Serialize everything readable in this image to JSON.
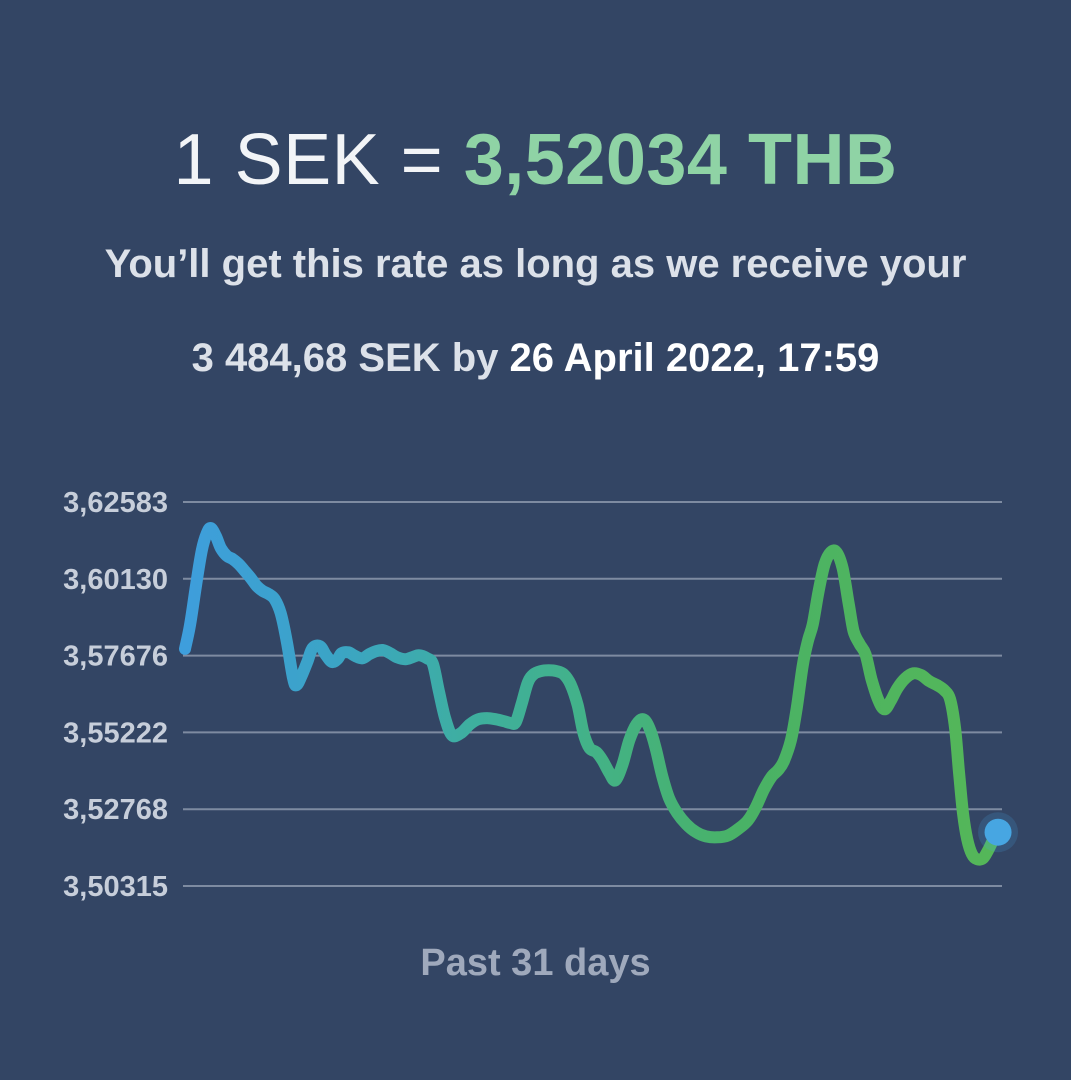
{
  "header": {
    "rate_prefix": "1 SEK = ",
    "rate_value": "3,52034 THB",
    "subtitle_line1": "You’ll get this rate as long as we receive your",
    "subtitle_line2_prefix": "3 484,68 SEK by ",
    "subtitle_line2_deadline": "26 April 2022, 17:59"
  },
  "chart_data": {
    "type": "line",
    "title": "",
    "xlabel": "Past 31 days",
    "ylabel": "",
    "y_ticks": [
      "3,62583",
      "3,60130",
      "3,57676",
      "3,55222",
      "3,52768",
      "3,50315"
    ],
    "ylim": [
      3.50315,
      3.62583
    ],
    "x_window_days": 31,
    "grid": true,
    "legend": "none",
    "series": [
      {
        "name": "SEK to THB exchange rate",
        "points": [
          [
            0,
            3.5789
          ],
          [
            0.19,
            3.5865
          ],
          [
            0.42,
            3.5993
          ],
          [
            0.64,
            3.6105
          ],
          [
            0.83,
            3.6159
          ],
          [
            0.98,
            3.6175
          ],
          [
            1.17,
            3.615
          ],
          [
            1.36,
            3.6111
          ],
          [
            1.59,
            3.6086
          ],
          [
            1.81,
            3.6076
          ],
          [
            2.04,
            3.606
          ],
          [
            2.27,
            3.6038
          ],
          [
            2.5,
            3.6015
          ],
          [
            2.72,
            3.599
          ],
          [
            2.95,
            3.5974
          ],
          [
            3.18,
            3.5964
          ],
          [
            3.4,
            3.5948
          ],
          [
            3.63,
            3.5903
          ],
          [
            3.86,
            3.5814
          ],
          [
            4.1,
            3.5695
          ],
          [
            4.23,
            3.5673
          ],
          [
            4.42,
            3.5702
          ],
          [
            4.65,
            3.575
          ],
          [
            4.84,
            3.5792
          ],
          [
            5.12,
            3.5798
          ],
          [
            5.35,
            3.5769
          ],
          [
            5.58,
            3.5747
          ],
          [
            5.8,
            3.5758
          ],
          [
            5.94,
            3.5775
          ],
          [
            6.2,
            3.5778
          ],
          [
            6.46,
            3.5766
          ],
          [
            6.73,
            3.5759
          ],
          [
            6.99,
            3.5772
          ],
          [
            7.26,
            3.5782
          ],
          [
            7.52,
            3.5785
          ],
          [
            7.79,
            3.5775
          ],
          [
            8.05,
            3.5762
          ],
          [
            8.36,
            3.5756
          ],
          [
            8.62,
            3.5762
          ],
          [
            8.88,
            3.5769
          ],
          [
            9.19,
            3.5759
          ],
          [
            9.41,
            3.574
          ],
          [
            9.64,
            3.5651
          ],
          [
            9.87,
            3.5568
          ],
          [
            10.13,
            3.5513
          ],
          [
            10.47,
            3.552
          ],
          [
            10.81,
            3.5548
          ],
          [
            11.12,
            3.5564
          ],
          [
            11.46,
            3.5568
          ],
          [
            11.8,
            3.5564
          ],
          [
            12.1,
            3.5558
          ],
          [
            12.36,
            3.5552
          ],
          [
            12.55,
            3.5555
          ],
          [
            12.78,
            3.5615
          ],
          [
            13.01,
            3.5682
          ],
          [
            13.23,
            3.5708
          ],
          [
            13.5,
            3.5718
          ],
          [
            13.8,
            3.5721
          ],
          [
            14.1,
            3.5718
          ],
          [
            14.37,
            3.5708
          ],
          [
            14.63,
            3.5676
          ],
          [
            14.9,
            3.5609
          ],
          [
            15.12,
            3.552
          ],
          [
            15.35,
            3.5472
          ],
          [
            15.61,
            3.5459
          ],
          [
            15.84,
            3.5433
          ],
          [
            16.11,
            3.5392
          ],
          [
            16.33,
            3.5369
          ],
          [
            16.6,
            3.542
          ],
          [
            16.86,
            3.5497
          ],
          [
            17.13,
            3.5548
          ],
          [
            17.39,
            3.5564
          ],
          [
            17.62,
            3.5536
          ],
          [
            17.85,
            3.5475
          ],
          [
            18.11,
            3.5382
          ],
          [
            18.37,
            3.5312
          ],
          [
            18.68,
            3.5264
          ],
          [
            19.02,
            3.5229
          ],
          [
            19.4,
            3.5203
          ],
          [
            19.77,
            3.519
          ],
          [
            20.19,
            3.5187
          ],
          [
            20.61,
            3.5193
          ],
          [
            20.98,
            3.5213
          ],
          [
            21.36,
            3.5241
          ],
          [
            21.66,
            3.5283
          ],
          [
            21.97,
            3.534
          ],
          [
            22.27,
            3.5382
          ],
          [
            22.5,
            3.5401
          ],
          [
            22.72,
            3.543
          ],
          [
            22.99,
            3.5497
          ],
          [
            23.21,
            3.5599
          ],
          [
            23.44,
            3.5737
          ],
          [
            23.63,
            3.5813
          ],
          [
            23.82,
            3.5868
          ],
          [
            24.04,
            3.5973
          ],
          [
            24.27,
            3.606
          ],
          [
            24.5,
            3.6098
          ],
          [
            24.72,
            3.6098
          ],
          [
            24.95,
            3.6047
          ],
          [
            25.18,
            3.5935
          ],
          [
            25.37,
            3.5845
          ],
          [
            25.6,
            3.5804
          ],
          [
            25.82,
            3.5772
          ],
          [
            26.05,
            3.5692
          ],
          [
            26.31,
            3.5625
          ],
          [
            26.54,
            3.5596
          ],
          [
            26.77,
            3.5622
          ],
          [
            27.03,
            3.5663
          ],
          [
            27.33,
            3.5695
          ],
          [
            27.64,
            3.5711
          ],
          [
            27.94,
            3.5705
          ],
          [
            28.24,
            3.5686
          ],
          [
            28.54,
            3.5673
          ],
          [
            28.81,
            3.5657
          ],
          [
            29.03,
            3.5628
          ],
          [
            29.22,
            3.5535
          ],
          [
            29.37,
            3.5395
          ],
          [
            29.52,
            3.5264
          ],
          [
            29.68,
            3.5181
          ],
          [
            29.86,
            3.5133
          ],
          [
            30.05,
            3.5117
          ],
          [
            30.28,
            3.512
          ],
          [
            30.47,
            3.5145
          ],
          [
            30.62,
            3.5171
          ]
        ]
      }
    ],
    "end_marker": {
      "day": 30.85,
      "value": 3.52034
    }
  },
  "colors": {
    "background": "#334564",
    "headline_text": "#F2F4F7",
    "headline_accent_green": "#8FD3A5",
    "subtitle_text": "#DCE1E9",
    "subtitle_strong_text": "#FFFFFF",
    "axis_tick_text": "#C7CEDA",
    "xlabel_text": "#9FA9BC",
    "gridline": "#C8D0DE",
    "marker_blue": "#47A6E2",
    "line_gradient": [
      [
        "0%",
        "#3E9EDC"
      ],
      [
        "18%",
        "#3BA4C6"
      ],
      [
        "35%",
        "#3EAF9F"
      ],
      [
        "50%",
        "#43B287"
      ],
      [
        "68%",
        "#49B266"
      ],
      [
        "100%",
        "#55B758"
      ]
    ]
  }
}
